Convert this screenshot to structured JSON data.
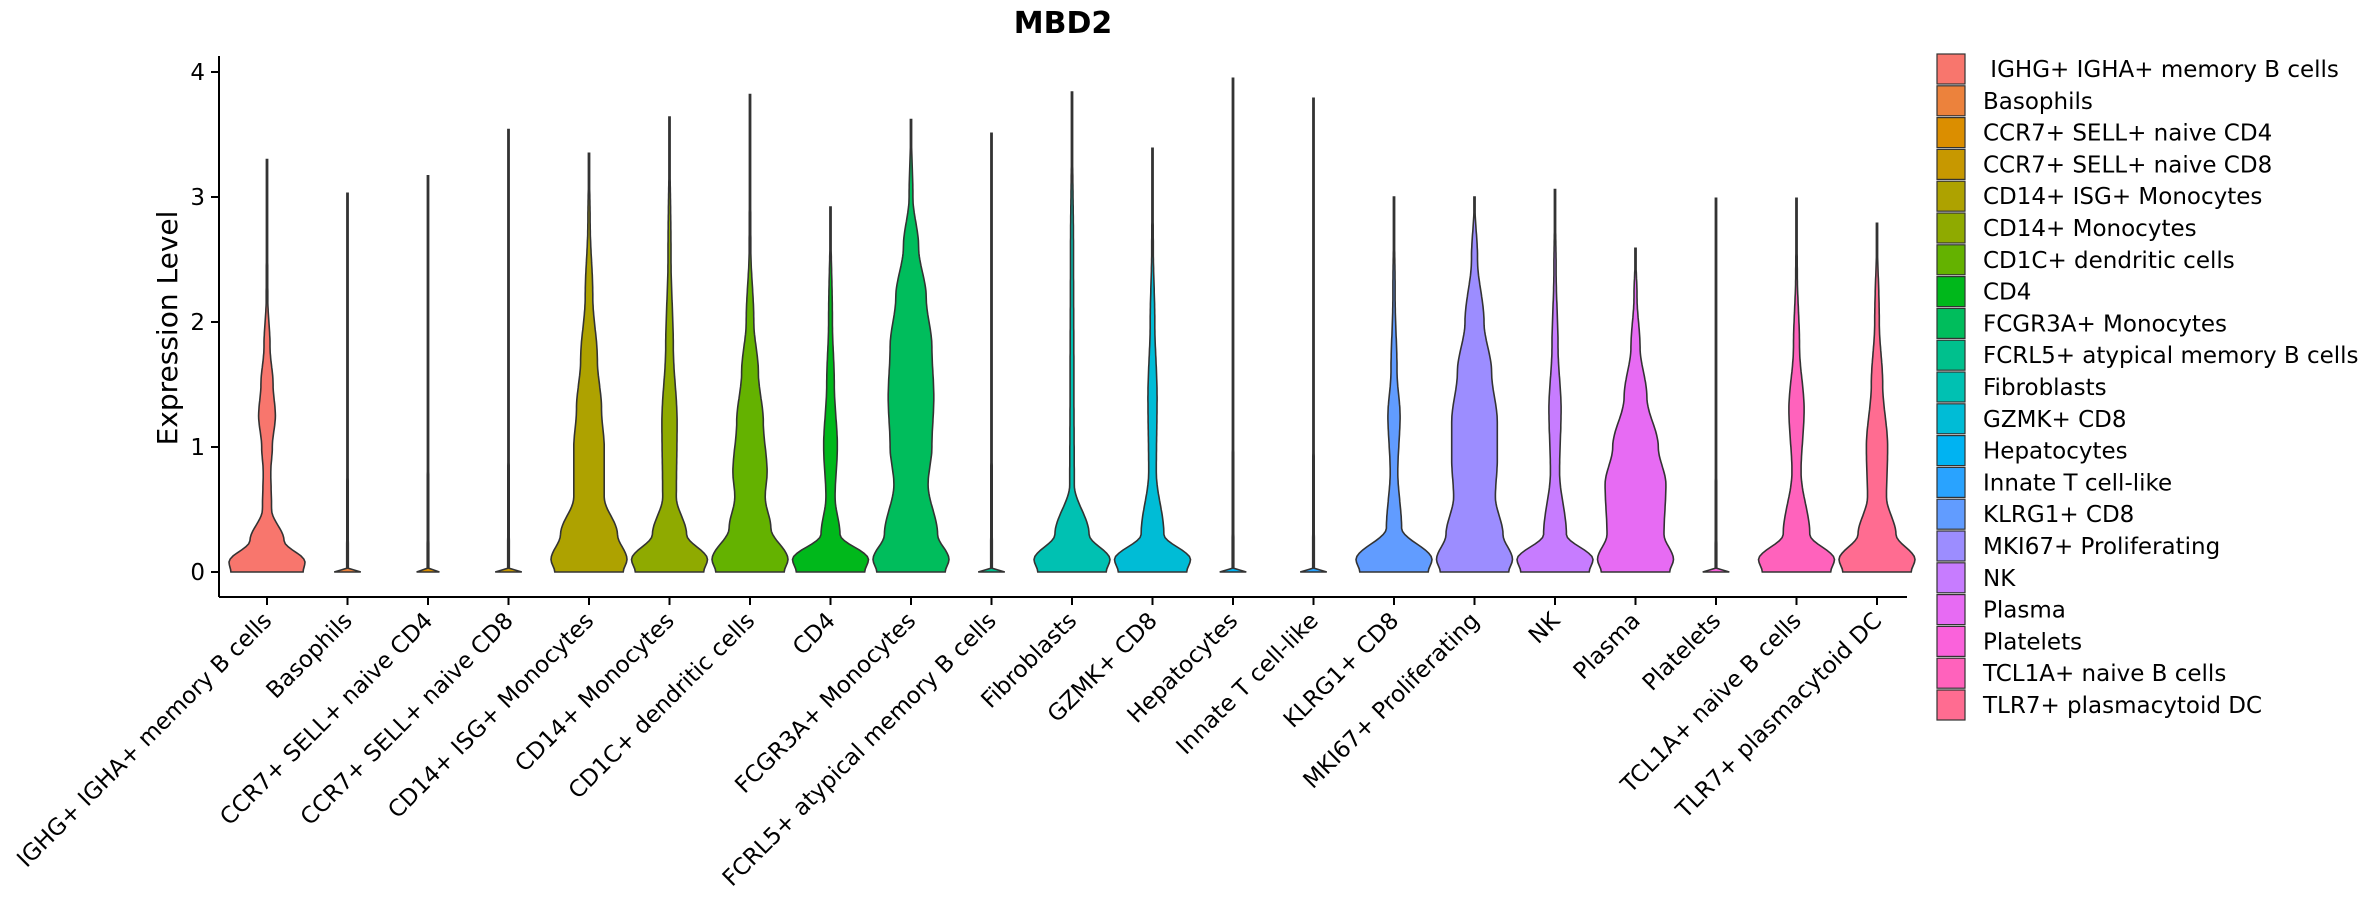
{
  "chart_data": {
    "type": "violin",
    "title": "MBD2",
    "xlabel": "",
    "ylabel": "Expression Level",
    "ylim": [
      -0.2,
      4.1
    ],
    "yticks": [
      0,
      1,
      2,
      3,
      4
    ],
    "categories": [
      " IGHG+ IGHA+ memory B cells",
      "Basophils",
      "CCR7+ SELL+ naive CD4",
      "CCR7+ SELL+ naive CD8",
      "CD14+ ISG+ Monocytes",
      "CD14+ Monocytes",
      "CD1C+ dendritic cells",
      "CD4",
      "FCGR3A+ Monocytes",
      "FCRL5+ atypical memory B cells",
      "Fibroblasts",
      "GZMK+ CD8",
      "Hepatocytes",
      "Innate T cell-like",
      "KLRG1+ CD8",
      "MKI67+ Proliferating",
      "NK",
      "Plasma",
      "Platelets",
      "TCL1A+ naive B cells",
      "TLR7+ plasmacytoid DC"
    ],
    "colors": [
      "#F8766D",
      "#EC823C",
      "#DB8E00",
      "#C79800",
      "#AEA200",
      "#8FAA00",
      "#64B200",
      "#00B81B",
      "#00BD5C",
      "#00C08D",
      "#00C1B2",
      "#00BCD6",
      "#00B3F2",
      "#29A3FF",
      "#619CFF",
      "#9C8DFF",
      "#C77CFF",
      "#E76BF3",
      "#FA62DB",
      "#FF62BC",
      "#FF6C91"
    ],
    "max_values": [
      3.3,
      3.03,
      3.17,
      3.54,
      3.35,
      3.64,
      3.82,
      2.92,
      3.62,
      3.51,
      3.84,
      3.39,
      3.95,
      3.79,
      3.0,
      3.0,
      3.06,
      2.59,
      2.99,
      2.99,
      2.79
    ],
    "density_profiles": [
      [
        [
          0,
          0.95
        ],
        [
          0.08,
          1.0
        ],
        [
          0.25,
          0.45
        ],
        [
          0.5,
          0.12
        ],
        [
          0.8,
          0.1
        ],
        [
          1.0,
          0.14
        ],
        [
          1.25,
          0.22
        ],
        [
          1.5,
          0.16
        ],
        [
          1.8,
          0.08
        ],
        [
          2.2,
          0.02
        ],
        [
          3.3,
          0
        ]
      ],
      [
        [
          0,
          0.35
        ],
        [
          0.03,
          0.02
        ],
        [
          3.03,
          0
        ]
      ],
      [
        [
          0,
          0.3
        ],
        [
          0.03,
          0.02
        ],
        [
          3.17,
          0
        ]
      ],
      [
        [
          0,
          0.35
        ],
        [
          0.03,
          0.02
        ],
        [
          3.54,
          0
        ]
      ],
      [
        [
          0,
          0.9
        ],
        [
          0.1,
          1.0
        ],
        [
          0.3,
          0.75
        ],
        [
          0.6,
          0.4
        ],
        [
          1.0,
          0.4
        ],
        [
          1.3,
          0.33
        ],
        [
          1.7,
          0.22
        ],
        [
          2.2,
          0.1
        ],
        [
          2.8,
          0.03
        ],
        [
          3.35,
          0
        ]
      ],
      [
        [
          0,
          0.9
        ],
        [
          0.1,
          1.0
        ],
        [
          0.3,
          0.45
        ],
        [
          0.6,
          0.18
        ],
        [
          1.2,
          0.2
        ],
        [
          1.8,
          0.1
        ],
        [
          2.5,
          0.04
        ],
        [
          3.64,
          0
        ]
      ],
      [
        [
          0,
          0.9
        ],
        [
          0.1,
          1.0
        ],
        [
          0.35,
          0.55
        ],
        [
          0.6,
          0.4
        ],
        [
          0.8,
          0.45
        ],
        [
          1.2,
          0.35
        ],
        [
          1.6,
          0.22
        ],
        [
          2.0,
          0.1
        ],
        [
          2.6,
          0.02
        ],
        [
          3.82,
          0
        ]
      ],
      [
        [
          0,
          0.9
        ],
        [
          0.1,
          1.0
        ],
        [
          0.3,
          0.25
        ],
        [
          0.6,
          0.12
        ],
        [
          1.0,
          0.18
        ],
        [
          1.5,
          0.1
        ],
        [
          2.0,
          0.05
        ],
        [
          2.92,
          0
        ]
      ],
      [
        [
          0,
          0.9
        ],
        [
          0.1,
          1.0
        ],
        [
          0.3,
          0.7
        ],
        [
          0.7,
          0.45
        ],
        [
          1.0,
          0.55
        ],
        [
          1.4,
          0.6
        ],
        [
          1.8,
          0.55
        ],
        [
          2.2,
          0.4
        ],
        [
          2.6,
          0.2
        ],
        [
          3.0,
          0.05
        ],
        [
          3.62,
          0
        ]
      ],
      [
        [
          0,
          0.35
        ],
        [
          0.03,
          0.02
        ],
        [
          3.51,
          0
        ]
      ],
      [
        [
          0,
          0.9
        ],
        [
          0.1,
          1.0
        ],
        [
          0.3,
          0.45
        ],
        [
          0.7,
          0.06
        ],
        [
          1.5,
          0.05
        ],
        [
          2.5,
          0.04
        ],
        [
          3.84,
          0
        ]
      ],
      [
        [
          0,
          0.9
        ],
        [
          0.1,
          1.0
        ],
        [
          0.3,
          0.3
        ],
        [
          0.8,
          0.1
        ],
        [
          1.4,
          0.12
        ],
        [
          2.0,
          0.06
        ],
        [
          2.6,
          0.02
        ],
        [
          3.39,
          0
        ]
      ],
      [
        [
          0,
          0.35
        ],
        [
          0.03,
          0.02
        ],
        [
          3.95,
          0
        ]
      ],
      [
        [
          0,
          0.35
        ],
        [
          0.03,
          0.02
        ],
        [
          3.79,
          0
        ]
      ],
      [
        [
          0,
          0.9
        ],
        [
          0.1,
          1.0
        ],
        [
          0.35,
          0.2
        ],
        [
          0.8,
          0.1
        ],
        [
          1.25,
          0.16
        ],
        [
          1.6,
          0.08
        ],
        [
          2.2,
          0.03
        ],
        [
          3.0,
          0
        ]
      ],
      [
        [
          0,
          0.9
        ],
        [
          0.1,
          1.0
        ],
        [
          0.3,
          0.75
        ],
        [
          0.6,
          0.55
        ],
        [
          0.9,
          0.6
        ],
        [
          1.2,
          0.6
        ],
        [
          1.6,
          0.45
        ],
        [
          2.0,
          0.25
        ],
        [
          2.5,
          0.08
        ],
        [
          3.0,
          0
        ]
      ],
      [
        [
          0,
          0.9
        ],
        [
          0.1,
          1.0
        ],
        [
          0.3,
          0.3
        ],
        [
          0.8,
          0.12
        ],
        [
          1.3,
          0.16
        ],
        [
          1.8,
          0.08
        ],
        [
          2.4,
          0.03
        ],
        [
          3.06,
          0
        ]
      ],
      [
        [
          0,
          0.9
        ],
        [
          0.1,
          1.0
        ],
        [
          0.3,
          0.75
        ],
        [
          0.7,
          0.8
        ],
        [
          1.0,
          0.6
        ],
        [
          1.4,
          0.3
        ],
        [
          1.8,
          0.12
        ],
        [
          2.2,
          0.04
        ],
        [
          2.59,
          0
        ]
      ],
      [
        [
          0,
          0.35
        ],
        [
          0.03,
          0.02
        ],
        [
          2.99,
          0
        ]
      ],
      [
        [
          0,
          0.9
        ],
        [
          0.1,
          1.0
        ],
        [
          0.3,
          0.35
        ],
        [
          0.8,
          0.12
        ],
        [
          1.3,
          0.2
        ],
        [
          1.8,
          0.08
        ],
        [
          2.4,
          0.02
        ],
        [
          2.99,
          0
        ]
      ],
      [
        [
          0,
          0.9
        ],
        [
          0.1,
          1.0
        ],
        [
          0.3,
          0.5
        ],
        [
          0.6,
          0.25
        ],
        [
          1.0,
          0.28
        ],
        [
          1.5,
          0.15
        ],
        [
          2.0,
          0.06
        ],
        [
          2.79,
          0
        ]
      ]
    ],
    "legend": {
      "position": "right",
      "entries": [
        " IGHG+ IGHA+ memory B cells",
        "Basophils",
        "CCR7+ SELL+ naive CD4",
        "CCR7+ SELL+ naive CD8",
        "CD14+ ISG+ Monocytes",
        "CD14+ Monocytes",
        "CD1C+ dendritic cells",
        "CD4",
        "FCGR3A+ Monocytes",
        "FCRL5+ atypical memory B cells",
        "Fibroblasts",
        "GZMK+ CD8",
        "Hepatocytes",
        "Innate T cell-like",
        "KLRG1+ CD8",
        "MKI67+ Proliferating",
        "NK",
        "Plasma",
        "Platelets",
        "TCL1A+ naive B cells",
        "TLR7+ plasmacytoid DC"
      ]
    },
    "grid": false
  }
}
